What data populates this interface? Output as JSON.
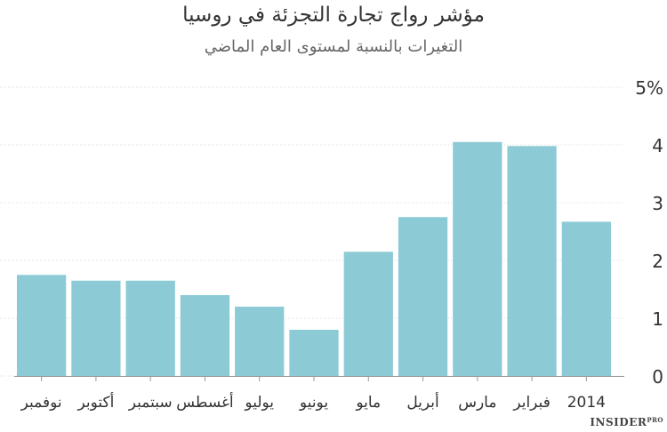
{
  "chart_data": {
    "type": "bar",
    "title": "مؤشر رواج تجارة التجزئة في روسيا",
    "subtitle": "التغيرات بالنسبة لمستوى العام الماضي",
    "categories": [
      "نوفمبر",
      "أكتوبر",
      "سبتمبر",
      "أغسطس",
      "يوليو",
      "يونيو",
      "مايو",
      "أبريل",
      "مارس",
      "فبراير",
      "2014"
    ],
    "values": [
      1.75,
      1.65,
      1.65,
      1.4,
      1.2,
      0.8,
      2.15,
      2.75,
      4.05,
      3.98,
      2.67
    ],
    "ylim": [
      0,
      5
    ],
    "yticks": [
      "0",
      "1",
      "2",
      "3",
      "4",
      "5%"
    ],
    "bar_color": "#8ccbd6",
    "grid": true
  },
  "source": {
    "brand": "INSIDER",
    "suffix": "PRO"
  }
}
